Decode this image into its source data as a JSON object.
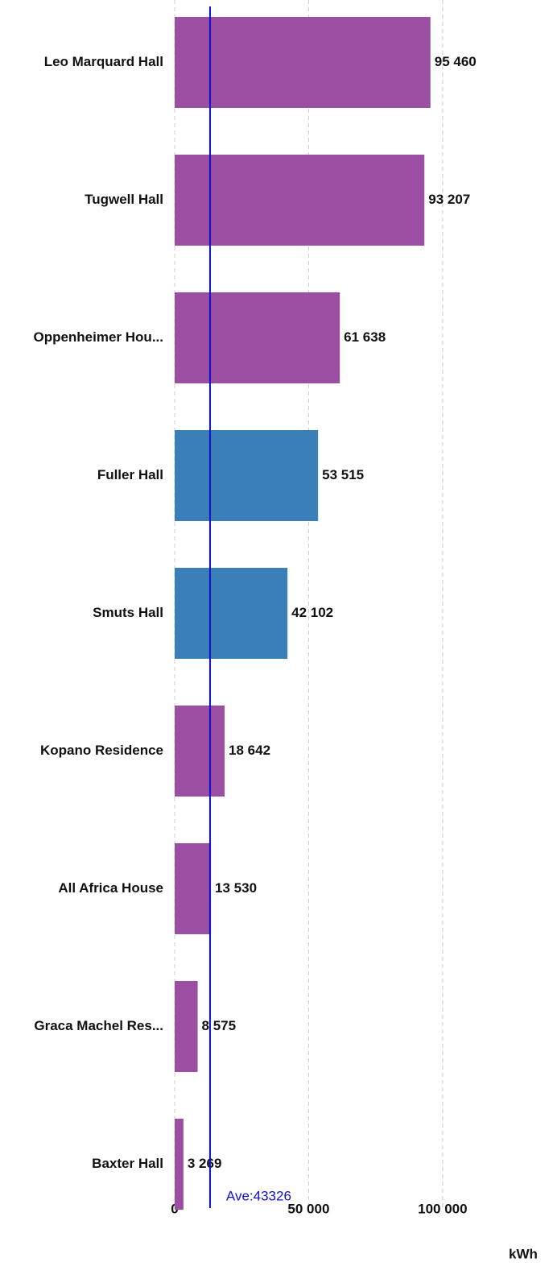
{
  "chart_data": {
    "type": "barh",
    "categories": [
      "Leo Marquard Hall",
      "Tugwell Hall",
      "Oppenheimer Hou...",
      "Fuller Hall",
      "Smuts Hall",
      "Kopano Residence",
      "All Africa House",
      "Graca Machel Res...",
      "Baxter Hall"
    ],
    "values": [
      95460,
      93207,
      61638,
      53515,
      42102,
      18642,
      13530,
      8575,
      3269
    ],
    "value_labels": [
      "95 460",
      "93 207",
      "61 638",
      "53 515",
      "42 102",
      "18 642",
      "13 530",
      "8 575",
      "3 269"
    ],
    "colors": [
      "#9a4fa3",
      "#9a4fa3",
      "#9a4fa3",
      "#3a7fb8",
      "#3a7fb8",
      "#9a4fa3",
      "#9a4fa3",
      "#9a4fa3",
      "#9a4fa3"
    ],
    "xlim": [
      0,
      140000
    ],
    "xticks": [
      0,
      {
        "value": 50000,
        "label": "50 000"
      },
      {
        "value": 100000,
        "label": "100 000"
      }
    ],
    "x_label": "kWh",
    "grid": true,
    "reference_line": 13200,
    "reference_color": "#1010d0",
    "annotation": "Ave:43326"
  }
}
